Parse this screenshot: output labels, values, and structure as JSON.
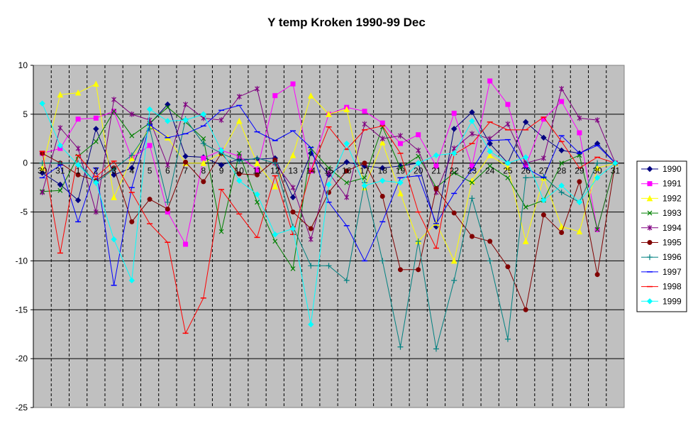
{
  "chart_data": {
    "type": "line",
    "title": "Y temp Kroken 1990-99 Dec",
    "xlabel": "",
    "ylabel": "",
    "ylim": [
      -25,
      10
    ],
    "yticks": [
      10,
      5,
      0,
      -5,
      -10,
      -15,
      -20,
      -25
    ],
    "grid": "on",
    "legend": "right",
    "categories": [
      "30",
      "31",
      "1",
      "2",
      "3",
      "4",
      "5",
      "6",
      "7",
      "8",
      "9",
      "10",
      "11",
      "12",
      "13",
      "14",
      "15",
      "16",
      "17",
      "18",
      "19",
      "20",
      "21",
      "22",
      "23",
      "24",
      "25",
      "26",
      "27",
      "28",
      "29",
      "30",
      "31"
    ],
    "series": [
      {
        "name": "1990",
        "color": "#000080",
        "marker": "diamond",
        "values": [
          -1,
          -2.2,
          -3.8,
          3.5,
          -1.2,
          -0.5,
          4.0,
          6.0,
          0.7,
          0.6,
          -0.2,
          0.4,
          0.4,
          0.5,
          -3.5,
          1.0,
          -1.2,
          0.1,
          -0.3,
          -0.5,
          -0.3,
          0.0,
          -6.5,
          3.5,
          5.2,
          2.0,
          0.0,
          4.2,
          2.6,
          1.3,
          1.0,
          2.0,
          0
        ]
      },
      {
        "name": "1991",
        "color": "#FF00FF",
        "marker": "square",
        "values": [
          1.0,
          1.5,
          4.5,
          4.6,
          5.3,
          0.5,
          1.8,
          -5.0,
          -8.3,
          0.5,
          1.3,
          0.7,
          -0.7,
          6.9,
          8.1,
          -0.8,
          5.0,
          5.7,
          5.3,
          4.1,
          2.0,
          2.9,
          -0.3,
          5.1,
          -0.3,
          8.4,
          6.0,
          -0.3,
          4.5,
          6.3,
          3.1,
          -6.8,
          0
        ]
      },
      {
        "name": "1992",
        "color": "#FFFF00",
        "marker": "triangle",
        "values": [
          -0.5,
          7.0,
          7.2,
          8.1,
          -3.5,
          0.5,
          3.7,
          2.6,
          0.0,
          0.0,
          1.0,
          4.3,
          0.0,
          -2.4,
          0.8,
          6.9,
          5.0,
          5.5,
          -2.5,
          2.1,
          -3.1,
          -8.0,
          -6.1,
          -10.0,
          -1.8,
          0.8,
          -0.4,
          -8.0,
          -1.5,
          -6.5,
          -7.0,
          -0.5,
          0
        ]
      },
      {
        "name": "1993",
        "color": "#008000",
        "marker": "x",
        "values": [
          -2.9,
          -2.8,
          0.7,
          2.2,
          5.3,
          2.8,
          4.1,
          5.7,
          4.2,
          2.5,
          -7.0,
          1.0,
          -4.0,
          -8.0,
          -10.8,
          1.5,
          -0.5,
          -2.0,
          -1.5,
          3.7,
          -0.5,
          0.7,
          -2.5,
          -1.0,
          -2.0,
          -0.3,
          -1.5,
          -4.5,
          -3.8,
          0.0,
          0.8,
          -6.8,
          0
        ]
      },
      {
        "name": "1994",
        "color": "#800080",
        "marker": "star",
        "values": [
          -3.0,
          3.6,
          1.5,
          -5.0,
          6.5,
          5.0,
          4.4,
          -0.2,
          6.0,
          4.6,
          4.4,
          6.8,
          7.6,
          0.0,
          -2.5,
          -7.8,
          -1.0,
          -3.5,
          4.0,
          2.5,
          2.8,
          1.3,
          -3.0,
          1.5,
          3.0,
          2.5,
          4.0,
          0.0,
          0.5,
          7.6,
          4.6,
          4.4,
          0
        ]
      },
      {
        "name": "1995",
        "color": "#800000",
        "marker": "circle",
        "values": [
          1.0,
          0.0,
          -1.2,
          -1.8,
          -0.5,
          -6.0,
          -3.7,
          -4.7,
          0.1,
          -1.9,
          1.0,
          -1.1,
          -1.2,
          0.3,
          -5.0,
          -6.7,
          -3.0,
          -0.8,
          0.0,
          -3.4,
          -10.9,
          -10.9,
          -2.6,
          -5.1,
          -7.5,
          -8.0,
          -10.6,
          -15.0,
          -5.3,
          -7.1,
          -1.9,
          -11.4,
          0
        ]
      },
      {
        "name": "1996",
        "color": "#008080",
        "marker": "plus",
        "values": [
          0.0,
          0.0,
          0.0,
          -2.0,
          -0.6,
          0.8,
          3.5,
          -4.0,
          4.5,
          2.0,
          1.0,
          0.2,
          0.5,
          0.0,
          -6.5,
          -10.5,
          -10.5,
          -12.0,
          -2.0,
          -10.0,
          -18.8,
          -8.0,
          -19.0,
          -12.0,
          -3.6,
          -10.0,
          -18.0,
          -1.5,
          -1.4,
          -3.0,
          -4.0,
          0.0,
          0
        ]
      },
      {
        "name": "1997",
        "color": "#0000FF",
        "marker": "dash",
        "values": [
          -1.5,
          -0.2,
          -6.0,
          -0.5,
          -12.5,
          -2.5,
          3.9,
          2.6,
          3.0,
          3.8,
          5.4,
          5.9,
          3.2,
          2.3,
          3.3,
          1.6,
          -4.0,
          -6.4,
          -10.0,
          -6.0,
          -1.5,
          -1.3,
          -6.2,
          -3.1,
          -0.7,
          2.3,
          2.4,
          -0.5,
          -1.5,
          2.8,
          1.0,
          1.8,
          0
        ]
      },
      {
        "name": "1998",
        "color": "#FF0000",
        "marker": "dash",
        "values": [
          1.2,
          -9.2,
          0.8,
          -1.4,
          0.2,
          -3.0,
          -6.2,
          -8.1,
          -17.4,
          -13.8,
          -2.7,
          -5.2,
          -7.6,
          -1.3,
          -7.3,
          -0.8,
          3.7,
          1.4,
          3.4,
          3.8,
          1.0,
          -5.0,
          -8.7,
          0.9,
          2.0,
          4.2,
          3.4,
          3.4,
          4.7,
          2.2,
          -0.5,
          0.6,
          0
        ]
      },
      {
        "name": "1999",
        "color": "#00FFFF",
        "marker": "diamond",
        "values": [
          6.1,
          1.8,
          -0.2,
          -2.0,
          -7.8,
          -12.0,
          5.5,
          4.3,
          4.4,
          5.0,
          1.3,
          -1.8,
          -3.2,
          -7.3,
          -6.7,
          -16.5,
          -2.2,
          2.0,
          -2.3,
          -1.8,
          -2.0,
          0.0,
          0.8,
          1.0,
          4.3,
          1.2,
          0.0,
          0.6,
          -3.8,
          -2.3,
          -4.0,
          -1.5,
          0
        ]
      }
    ]
  }
}
